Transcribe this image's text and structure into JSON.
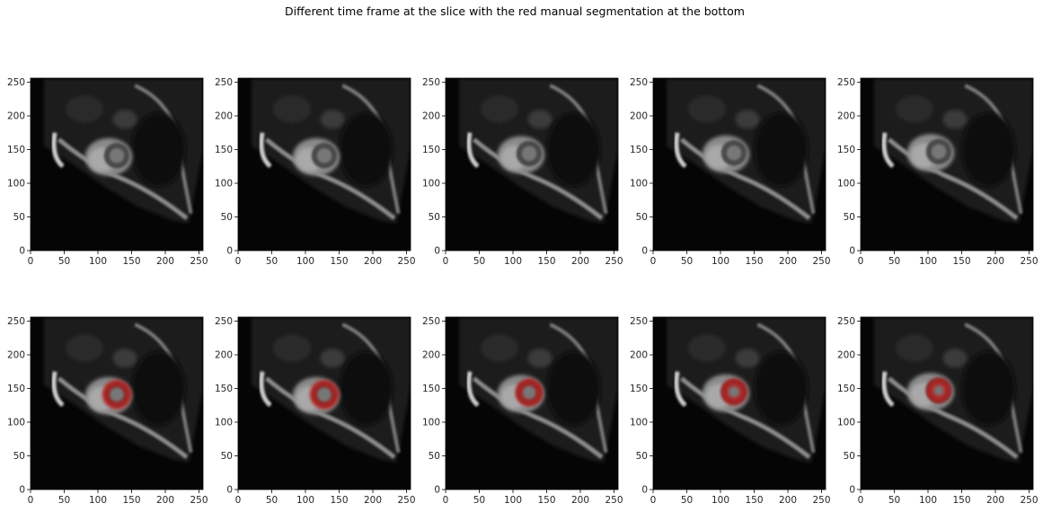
{
  "title": "Different time frame at the slice with the red manual segmentation at the bottom",
  "chart_data": {
    "type": "image_grid",
    "title": "Different time frame at the slice with the red manual segmentation at the bottom",
    "rows": 2,
    "cols": 5,
    "xlim": [
      0,
      256
    ],
    "ylim": [
      0,
      256
    ],
    "xticks": [
      0,
      50,
      100,
      150,
      200,
      250
    ],
    "yticks": [
      0,
      50,
      100,
      150,
      200,
      250
    ],
    "grid": false,
    "segmentation_color": "#c81414",
    "panels": [
      {
        "row": 0,
        "col": 0,
        "image": "cardiac-mri-frame",
        "heart_center": [
          128,
          141
        ],
        "segmentation": null
      },
      {
        "row": 0,
        "col": 1,
        "image": "cardiac-mri-frame",
        "heart_center": [
          128,
          141
        ],
        "segmentation": null
      },
      {
        "row": 0,
        "col": 2,
        "image": "cardiac-mri-frame",
        "heart_center": [
          124,
          144
        ],
        "segmentation": null
      },
      {
        "row": 0,
        "col": 3,
        "image": "cardiac-mri-frame",
        "heart_center": [
          120,
          145
        ],
        "segmentation": null
      },
      {
        "row": 0,
        "col": 4,
        "image": "cardiac-mri-frame",
        "heart_center": [
          116,
          147
        ],
        "segmentation": null
      },
      {
        "row": 1,
        "col": 0,
        "image": "cardiac-mri-frame",
        "heart_center": [
          128,
          141
        ],
        "segmentation": {
          "cx": 128,
          "cy": 141,
          "outer_r": 22,
          "inner_r": 11
        }
      },
      {
        "row": 1,
        "col": 1,
        "image": "cardiac-mri-frame",
        "heart_center": [
          128,
          141
        ],
        "segmentation": {
          "cx": 128,
          "cy": 141,
          "outer_r": 22,
          "inner_r": 11
        }
      },
      {
        "row": 1,
        "col": 2,
        "image": "cardiac-mri-frame",
        "heart_center": [
          124,
          144
        ],
        "segmentation": {
          "cx": 124,
          "cy": 144,
          "outer_r": 21,
          "inner_r": 10
        }
      },
      {
        "row": 1,
        "col": 3,
        "image": "cardiac-mri-frame",
        "heart_center": [
          120,
          145
        ],
        "segmentation": {
          "cx": 120,
          "cy": 145,
          "outer_r": 20,
          "inner_r": 8
        }
      },
      {
        "row": 1,
        "col": 4,
        "image": "cardiac-mri-frame",
        "heart_center": [
          116,
          147
        ],
        "segmentation": {
          "cx": 116,
          "cy": 147,
          "outer_r": 19,
          "inner_r": 7
        }
      }
    ]
  }
}
